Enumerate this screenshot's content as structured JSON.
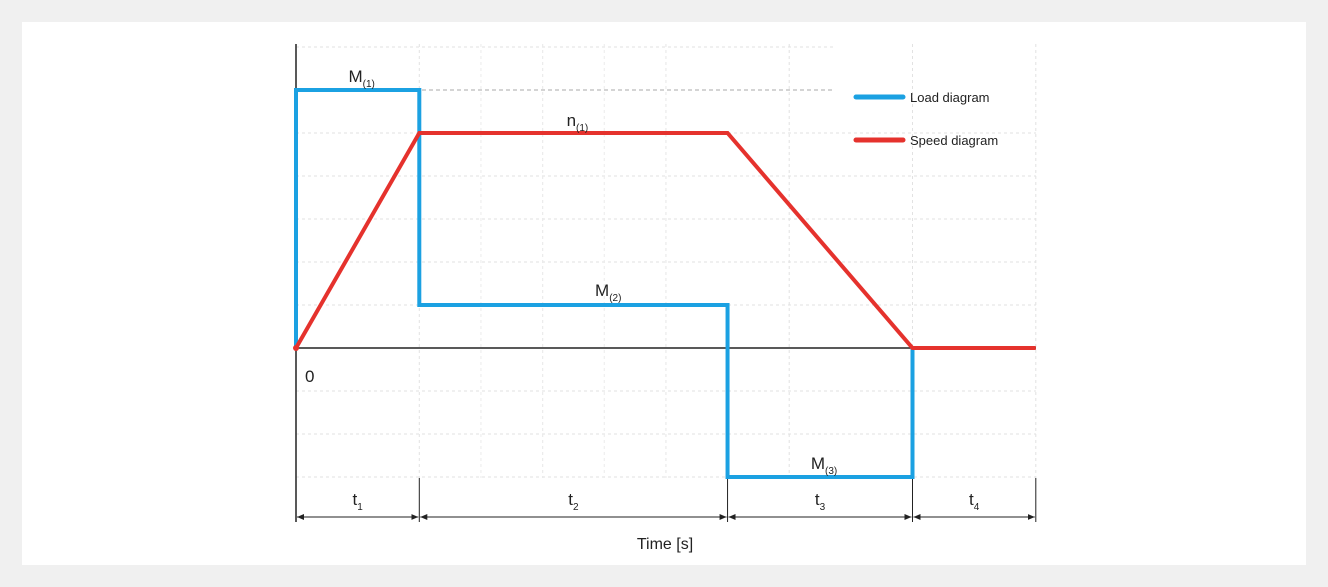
{
  "chart_data": {
    "type": "line",
    "title": "",
    "xlabel": "Time [s]",
    "ylabel": "",
    "origin_label": "0",
    "x_intervals": [
      {
        "main": "t",
        "sub": "1"
      },
      {
        "main": "t",
        "sub": "2"
      },
      {
        "main": "t",
        "sub": "3"
      },
      {
        "main": "t",
        "sub": "4"
      }
    ],
    "series": [
      {
        "name": "Load diagram",
        "color": "#1ba1e2",
        "x": [
          0,
          0,
          1,
          1,
          3.5,
          3.5,
          5,
          5
        ],
        "y": [
          0,
          6,
          6,
          1,
          1,
          -3,
          -3,
          0
        ]
      },
      {
        "name": "Speed diagram",
        "color": "#e5322d",
        "x": [
          0,
          1,
          3.5,
          5,
          6
        ],
        "y": [
          0,
          5,
          5,
          0,
          0
        ]
      }
    ],
    "annotations": [
      {
        "main": "M",
        "sub": "(1)",
        "x": 0.5,
        "y": 6
      },
      {
        "main": "n",
        "sub": "(1)",
        "x": 2.25,
        "y": 5
      },
      {
        "main": "M",
        "sub": "(2)",
        "x": 2.5,
        "y": 1
      },
      {
        "main": "M",
        "sub": "(3)",
        "x": 4.25,
        "y": -3
      }
    ],
    "legend_position": "top-right",
    "grid": true,
    "xlim": [
      0,
      6
    ],
    "ylim": [
      -3,
      7
    ]
  }
}
